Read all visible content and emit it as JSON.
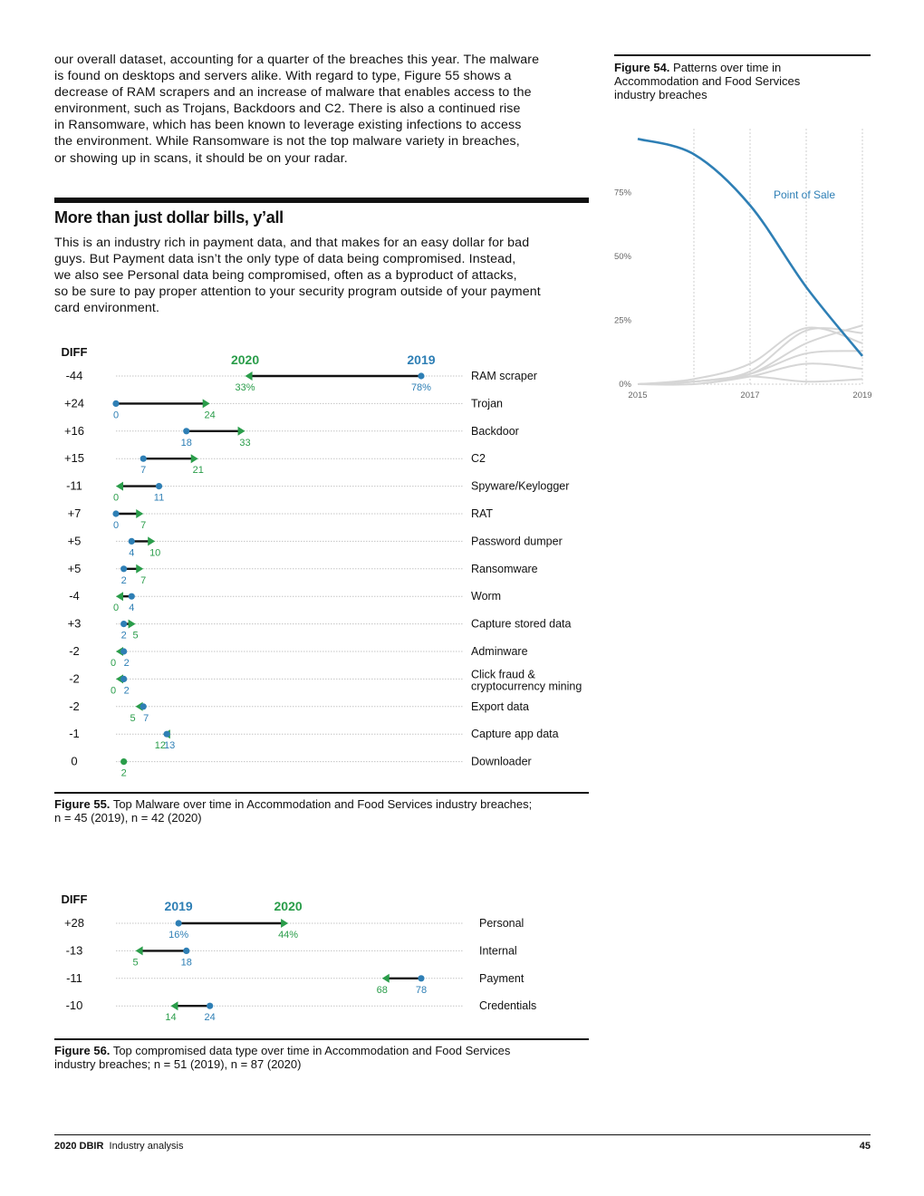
{
  "intro_paragraph": [
    "our overall dataset, accounting for a quarter of the breaches this year. The malware",
    "is found on desktops and servers alike. With regard to type, Figure 55 shows a",
    "decrease of RAM scrapers and an increase of malware that enables access to the",
    "environment, such as Trojans, Backdoors and C2. There is also a continued rise",
    "in Ransomware, which has been known to leverage existing infections to access",
    "the environment. While Ransomware is not the top malware variety in breaches,",
    "or showing up in scans, it should be on your radar."
  ],
  "section": {
    "title": "More than just dollar bills, y’all",
    "paragraph": [
      "This is an industry rich in payment data, and that makes for an easy dollar for bad",
      "guys. But Payment data isn’t the only type of data being compromised. Instead,",
      "we also see Personal data being compromised, often as a byproduct of attacks,",
      "so be sure to pay proper attention to your security program outside of your payment",
      "card environment."
    ]
  },
  "figure54": {
    "caption_label": "Figure 54.",
    "caption_lines": [
      "Patterns over time in",
      "Accommodation and Food Services",
      "industry breaches"
    ]
  },
  "figure55": {
    "caption_label": "Figure 55.",
    "caption_line1": "Top Malware over time in Accommodation and Food Services industry breaches;",
    "caption_line2": "n = 45 (2019), n = 42 (2020)"
  },
  "figure56": {
    "caption_label": "Figure 56.",
    "caption_line1": "Top compromised data type over time in Accommodation and Food Services",
    "caption_line2": "industry breaches; n = 51 (2019), n = 87 (2020)"
  },
  "footer": {
    "brand": "2020 DBIR",
    "section": "Industry analysis",
    "page_number": "45"
  },
  "colors": {
    "y2019": "#2e7fb5",
    "y2020": "#2a9d4a",
    "line_gray": "#d6d6d6",
    "text": "#111111"
  },
  "chart_data": [
    {
      "id": "figure54",
      "type": "line",
      "title": "",
      "x": [
        2015,
        2016,
        2017,
        2018,
        2019
      ],
      "x_tick_labels": [
        "2015",
        "2017",
        "2019"
      ],
      "y_tick_labels": [
        "0%",
        "25%",
        "50%",
        "75%"
      ],
      "ylim": [
        0,
        1
      ],
      "grid": "vertical dotted lines at years",
      "series": [
        {
          "name": "Point of Sale",
          "highlight": true,
          "values": [
            0.96,
            0.9,
            0.7,
            0.38,
            0.11
          ]
        },
        {
          "name": "",
          "values": [
            0.0,
            0.01,
            0.04,
            0.16,
            0.23
          ]
        },
        {
          "name": "",
          "values": [
            0.0,
            0.01,
            0.05,
            0.21,
            0.2
          ]
        },
        {
          "name": "",
          "values": [
            0.0,
            0.02,
            0.08,
            0.22,
            0.16
          ]
        },
        {
          "name": "",
          "values": [
            0.0,
            0.01,
            0.04,
            0.12,
            0.13
          ]
        },
        {
          "name": "",
          "values": [
            0.0,
            0.0,
            0.03,
            0.08,
            0.06
          ]
        },
        {
          "name": "",
          "values": [
            0.0,
            0.01,
            0.03,
            0.01,
            0.02
          ]
        }
      ]
    },
    {
      "id": "figure55",
      "type": "dumbbell",
      "diff_header": "DIFF",
      "label_2019": "2019",
      "label_2020": "2020",
      "xlim": [
        0,
        100
      ],
      "unit": "%",
      "rows": [
        {
          "name": "RAM scraper",
          "diff": "-44",
          "v2019": 78,
          "v2020": 33,
          "l2019": "78%",
          "l2020": "33%"
        },
        {
          "name": "Trojan",
          "diff": "+24",
          "v2019": 0,
          "v2020": 24,
          "l2019": "0",
          "l2020": "24"
        },
        {
          "name": "Backdoor",
          "diff": "+16",
          "v2019": 18,
          "v2020": 33,
          "l2019": "18",
          "l2020": "33"
        },
        {
          "name": "C2",
          "diff": "+15",
          "v2019": 7,
          "v2020": 21,
          "l2019": "7",
          "l2020": "21"
        },
        {
          "name": "Spyware/Keylogger",
          "diff": "-11",
          "v2019": 11,
          "v2020": 0,
          "l2019": "11",
          "l2020": "0"
        },
        {
          "name": "RAT",
          "diff": "+7",
          "v2019": 0,
          "v2020": 7,
          "l2019": "0",
          "l2020": "7"
        },
        {
          "name": "Password dumper",
          "diff": "+5",
          "v2019": 4,
          "v2020": 10,
          "l2019": "4",
          "l2020": "10"
        },
        {
          "name": "Ransomware",
          "diff": "+5",
          "v2019": 2,
          "v2020": 7,
          "l2019": "2",
          "l2020": "7"
        },
        {
          "name": "Worm",
          "diff": "-4",
          "v2019": 4,
          "v2020": 0,
          "l2019": "4",
          "l2020": "0"
        },
        {
          "name": "Capture stored data",
          "diff": "+3",
          "v2019": 2,
          "v2020": 5,
          "l2019": "2",
          "l2020": "5"
        },
        {
          "name": "Adminware",
          "diff": "-2",
          "v2019": 2,
          "v2020": 0,
          "l2019": "2",
          "l2020": "0"
        },
        {
          "name": "Click fraud &",
          "name2": "cryptocurrency mining",
          "diff": "-2",
          "v2019": 2,
          "v2020": 0,
          "l2019": "2",
          "l2020": "0"
        },
        {
          "name": "Export data",
          "diff": "-2",
          "v2019": 7,
          "v2020": 5,
          "l2019": "7",
          "l2020": "5"
        },
        {
          "name": "Capture app data",
          "diff": "-1",
          "v2019": 13,
          "v2020": 12,
          "l2019": "13",
          "l2020": "12"
        },
        {
          "name": "Downloader",
          "diff": "0",
          "v2019": 2,
          "v2020": 2,
          "l2019": "",
          "l2020": "2"
        }
      ]
    },
    {
      "id": "figure56",
      "type": "dumbbell",
      "diff_header": "DIFF",
      "label_2019": "2019",
      "label_2020": "2020",
      "xlim": [
        0,
        100
      ],
      "unit": "%",
      "rows": [
        {
          "name": "Personal",
          "diff": "+28",
          "v2019": 16,
          "v2020": 44,
          "l2019": "16%",
          "l2020": "44%"
        },
        {
          "name": "Internal",
          "diff": "-13",
          "v2019": 18,
          "v2020": 5,
          "l2019": "18",
          "l2020": "5"
        },
        {
          "name": "Payment",
          "diff": "-11",
          "v2019": 78,
          "v2020": 68,
          "l2019": "78",
          "l2020": "68"
        },
        {
          "name": "Credentials",
          "diff": "-10",
          "v2019": 24,
          "v2020": 14,
          "l2019": "24",
          "l2020": "14"
        }
      ]
    }
  ]
}
